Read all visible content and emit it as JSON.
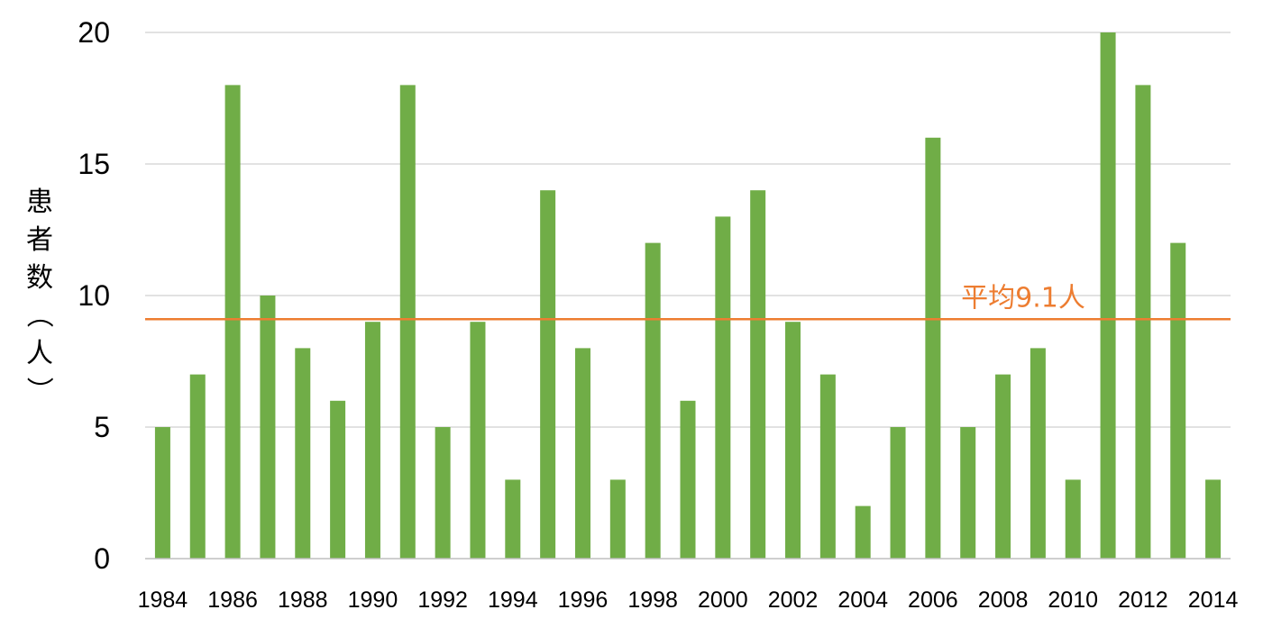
{
  "chart_data": {
    "type": "bar",
    "categories": [
      "1984",
      "1985",
      "1986",
      "1987",
      "1988",
      "1989",
      "1990",
      "1991",
      "1992",
      "1993",
      "1994",
      "1995",
      "1996",
      "1997",
      "1998",
      "1999",
      "2000",
      "2001",
      "2002",
      "2003",
      "2004",
      "2005",
      "2006",
      "2007",
      "2008",
      "2009",
      "2010",
      "2011",
      "2012",
      "2013",
      "2014"
    ],
    "x_tick_labels": [
      "1984",
      "1986",
      "1988",
      "1990",
      "1992",
      "1994",
      "1996",
      "1998",
      "2000",
      "2002",
      "2004",
      "2006",
      "2008",
      "2010",
      "2012",
      "2014"
    ],
    "values": [
      5,
      7,
      18,
      10,
      8,
      6,
      9,
      18,
      5,
      9,
      3,
      14,
      8,
      3,
      12,
      6,
      13,
      14,
      9,
      7,
      2,
      5,
      16,
      5,
      7,
      8,
      3,
      20,
      18,
      12,
      3
    ],
    "ylabel": "患者数（人）",
    "ylim": [
      0,
      20
    ],
    "y_ticks": [
      0,
      5,
      10,
      15,
      20
    ],
    "grid": true,
    "bar_color": "#70ad47",
    "average": {
      "value": 9.1,
      "label": "平均9.1人",
      "color": "#ed7d31"
    }
  }
}
